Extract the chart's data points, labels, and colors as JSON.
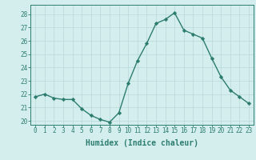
{
  "xlabel": "Humidex (Indice chaleur)",
  "x": [
    0,
    1,
    2,
    3,
    4,
    5,
    6,
    7,
    8,
    9,
    10,
    11,
    12,
    13,
    14,
    15,
    16,
    17,
    18,
    19,
    20,
    21,
    22,
    23
  ],
  "y": [
    21.8,
    22.0,
    21.7,
    21.6,
    21.6,
    20.9,
    20.4,
    20.1,
    19.9,
    20.6,
    22.8,
    24.5,
    25.8,
    27.3,
    27.6,
    28.1,
    26.8,
    26.5,
    26.2,
    24.7,
    23.3,
    22.3,
    21.8,
    21.3
  ],
  "line_color": "#2d7d6f",
  "marker": "D",
  "marker_size": 2.2,
  "bg_color": "#d4eeee",
  "grid_color": "#b8d8d8",
  "ylim": [
    19.7,
    28.7
  ],
  "yticks": [
    20,
    21,
    22,
    23,
    24,
    25,
    26,
    27,
    28
  ],
  "xticks": [
    0,
    1,
    2,
    3,
    4,
    5,
    6,
    7,
    8,
    9,
    10,
    11,
    12,
    13,
    14,
    15,
    16,
    17,
    18,
    19,
    20,
    21,
    22,
    23
  ],
  "tick_fontsize": 5.5,
  "xlabel_fontsize": 7.0,
  "line_width": 1.0
}
